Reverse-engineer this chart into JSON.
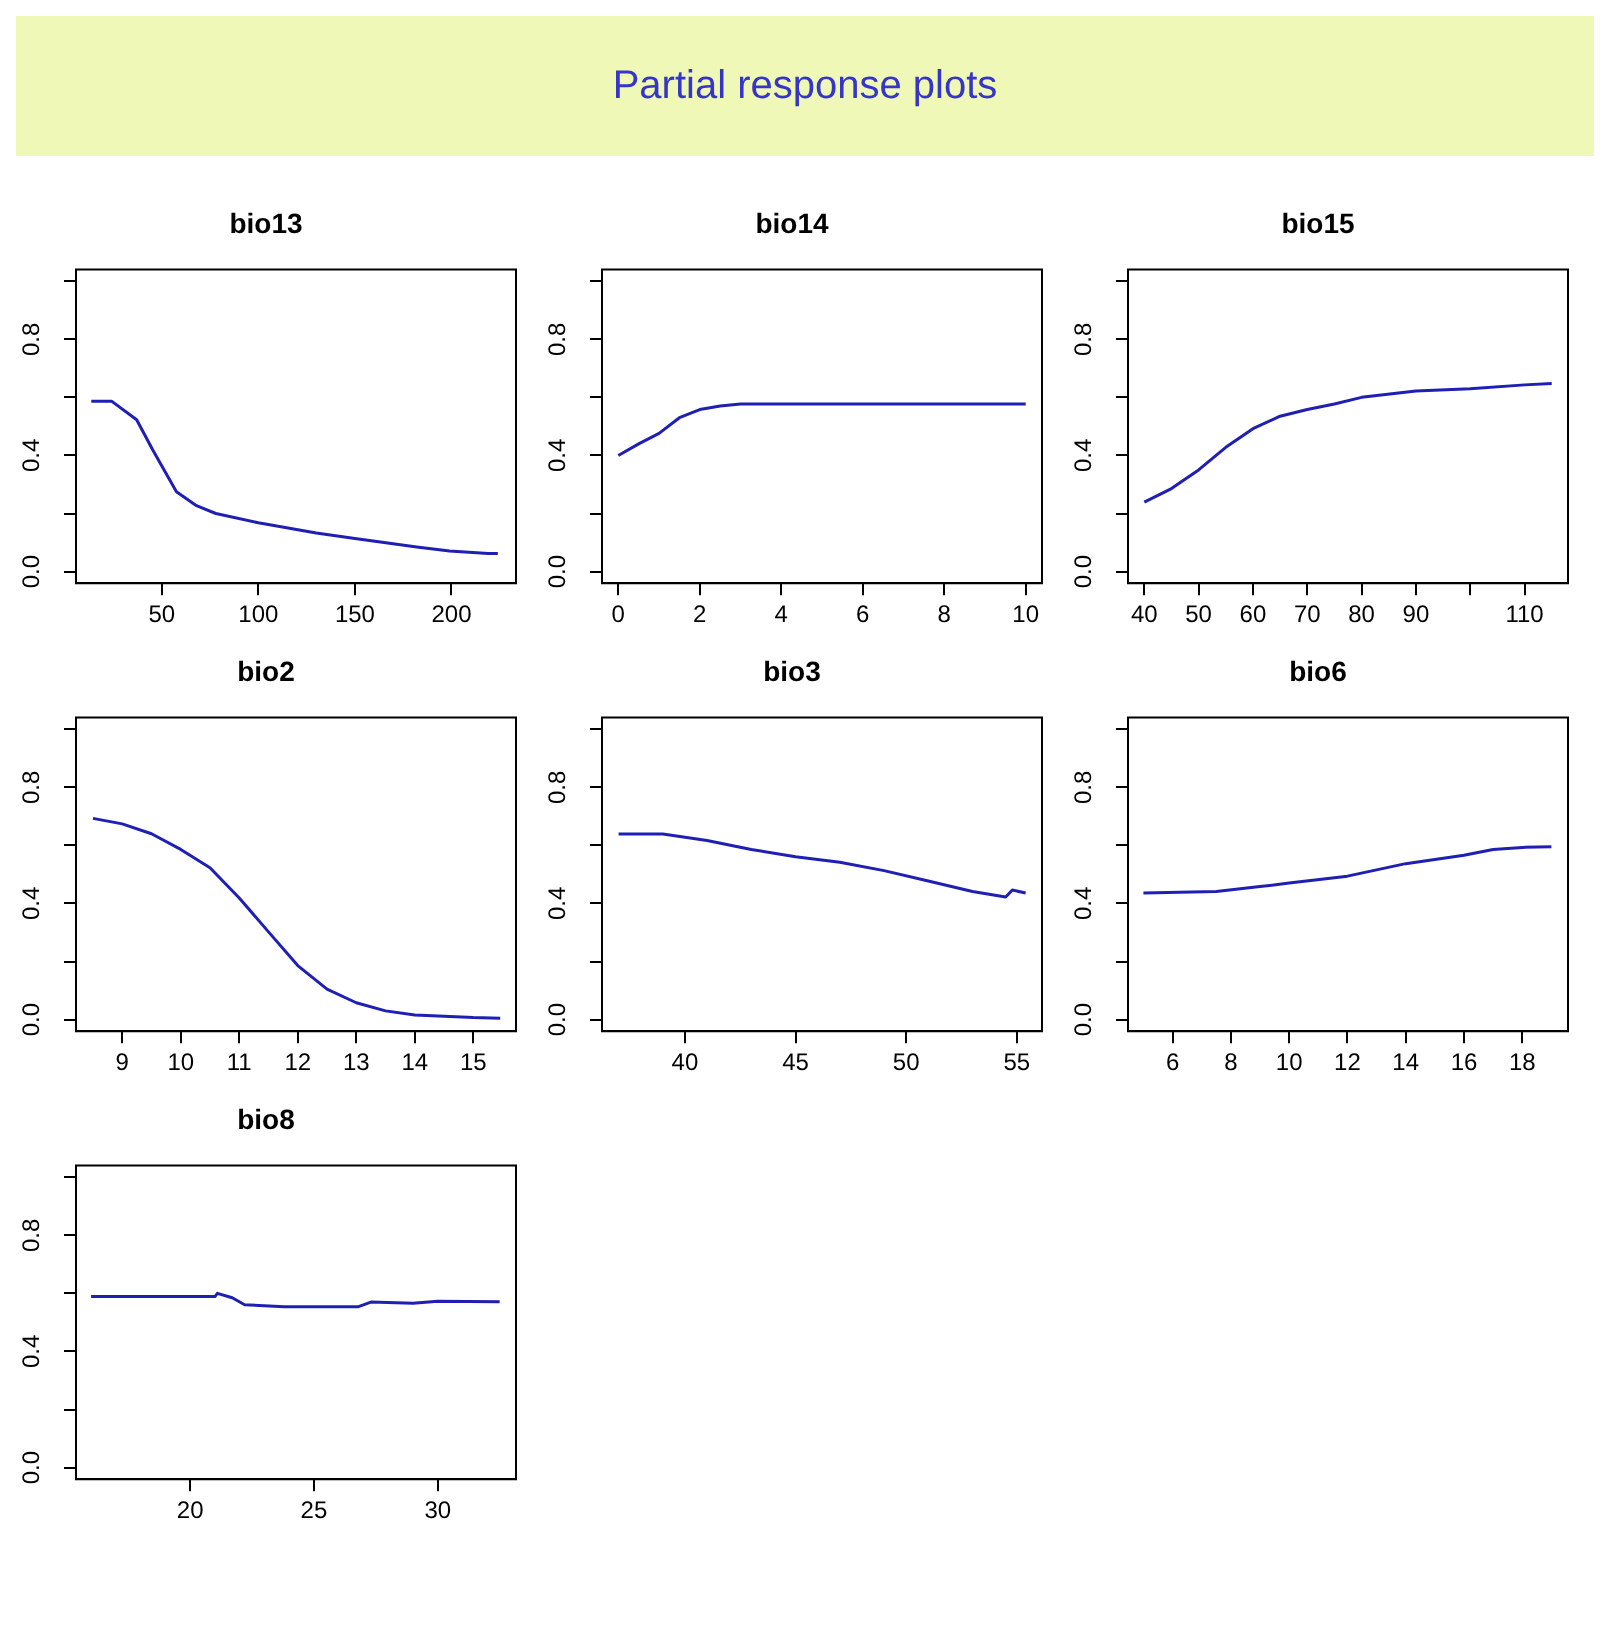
{
  "chart_data": [
    {
      "type": "other",
      "title": "Partial response plots"
    },
    {
      "type": "line",
      "title": "bio13",
      "x": [
        13.5,
        24,
        37,
        45.5,
        57.6,
        68,
        78,
        100,
        130,
        150,
        182,
        199,
        219,
        224
      ],
      "values": [
        0.587,
        0.587,
        0.523,
        0.417,
        0.275,
        0.227,
        0.2,
        0.168,
        0.133,
        0.114,
        0.085,
        0.071,
        0.062,
        0.062
      ],
      "color": "#1f1fb4",
      "xlim": [
        5.6,
        233.4
      ],
      "xticks": [
        50,
        100,
        150,
        200
      ],
      "ylim": [
        -0.04,
        1.04
      ],
      "yticks": [
        {
          "value": 0,
          "label": "0.0"
        },
        {
          "value": 0.2,
          "label": null
        },
        {
          "value": 0.4,
          "label": "0.4"
        },
        {
          "value": 0.6,
          "label": null
        },
        {
          "value": 0.8,
          "label": "0.8"
        },
        {
          "value": 1,
          "label": null
        }
      ],
      "grid": false
    },
    {
      "type": "line",
      "title": "bio14",
      "x": [
        0,
        0.5,
        1,
        1.5,
        2,
        2.5,
        3,
        10
      ],
      "values": [
        0.4,
        0.44,
        0.476,
        0.53,
        0.558,
        0.57,
        0.577,
        0.577
      ],
      "color": "#1f1fb4",
      "xlim": [
        -0.4,
        10.4
      ],
      "xticks": [
        0,
        2,
        4,
        6,
        8,
        10
      ],
      "ylim": [
        -0.04,
        1.04
      ],
      "yticks": [
        {
          "value": 0,
          "label": "0.0"
        },
        {
          "value": 0.2,
          "label": null
        },
        {
          "value": 0.4,
          "label": "0.4"
        },
        {
          "value": 0.6,
          "label": null
        },
        {
          "value": 0.8,
          "label": "0.8"
        },
        {
          "value": 1,
          "label": null
        }
      ],
      "grid": false
    },
    {
      "type": "line",
      "title": "bio15",
      "x": [
        40,
        45,
        50,
        55,
        60,
        65,
        70,
        75,
        80,
        90,
        100,
        110,
        115
      ],
      "values": [
        0.239,
        0.286,
        0.35,
        0.428,
        0.492,
        0.535,
        0.558,
        0.577,
        0.6,
        0.622,
        0.63,
        0.643,
        0.648
      ],
      "color": "#1f1fb4",
      "xlim": [
        37,
        118
      ],
      "xticks": [
        40,
        50,
        60,
        70,
        80,
        90,
        {
          "value": 100,
          "label": null
        },
        110
      ],
      "ylim": [
        -0.04,
        1.04
      ],
      "yticks": [
        {
          "value": 0,
          "label": "0.0"
        },
        {
          "value": 0.2,
          "label": null
        },
        {
          "value": 0.4,
          "label": "0.4"
        },
        {
          "value": 0.6,
          "label": null
        },
        {
          "value": 0.8,
          "label": "0.8"
        },
        {
          "value": 1,
          "label": null
        }
      ],
      "grid": false
    },
    {
      "type": "line",
      "title": "bio2",
      "x": [
        8.5,
        9,
        9.5,
        10,
        10.5,
        11,
        11.5,
        12,
        12.5,
        13,
        13.5,
        14,
        15,
        15.46
      ],
      "values": [
        0.693,
        0.674,
        0.64,
        0.586,
        0.523,
        0.419,
        0.302,
        0.186,
        0.105,
        0.058,
        0.03,
        0.016,
        0.007,
        0.005
      ],
      "color": "#1f1fb4",
      "xlim": [
        8.21,
        15.73
      ],
      "xticks": [
        9,
        10,
        11,
        12,
        13,
        14,
        15
      ],
      "ylim": [
        -0.04,
        1.04
      ],
      "yticks": [
        {
          "value": 0,
          "label": "0.0"
        },
        {
          "value": 0.2,
          "label": null
        },
        {
          "value": 0.4,
          "label": "0.4"
        },
        {
          "value": 0.6,
          "label": null
        },
        {
          "value": 0.8,
          "label": "0.8"
        },
        {
          "value": 1,
          "label": null
        }
      ],
      "grid": false
    },
    {
      "type": "line",
      "title": "bio3",
      "x": [
        37,
        39,
        41,
        43,
        45,
        47,
        49,
        51,
        53,
        54.5,
        54.8,
        55.4
      ],
      "values": [
        0.639,
        0.639,
        0.617,
        0.586,
        0.561,
        0.542,
        0.513,
        0.477,
        0.441,
        0.422,
        0.446,
        0.436
      ],
      "color": "#1f1fb4",
      "xlim": [
        36.25,
        56.14
      ],
      "xticks": [
        40,
        45,
        50,
        55
      ],
      "ylim": [
        -0.04,
        1.04
      ],
      "yticks": [
        {
          "value": 0,
          "label": "0.0"
        },
        {
          "value": 0.2,
          "label": null
        },
        {
          "value": 0.4,
          "label": "0.4"
        },
        {
          "value": 0.6,
          "label": null
        },
        {
          "value": 0.8,
          "label": "0.8"
        },
        {
          "value": 1,
          "label": null
        }
      ],
      "grid": false
    },
    {
      "type": "line",
      "title": "bio6",
      "x": [
        5,
        7.5,
        9,
        10,
        12,
        14,
        16,
        17,
        18,
        19
      ],
      "values": [
        0.436,
        0.441,
        0.458,
        0.47,
        0.494,
        0.537,
        0.566,
        0.586,
        0.593,
        0.595
      ],
      "color": "#1f1fb4",
      "xlim": [
        4.47,
        19.57
      ],
      "xticks": [
        6,
        8,
        10,
        12,
        14,
        16,
        18
      ],
      "ylim": [
        -0.04,
        1.04
      ],
      "yticks": [
        {
          "value": 0,
          "label": "0.0"
        },
        {
          "value": 0.2,
          "label": null
        },
        {
          "value": 0.4,
          "label": "0.4"
        },
        {
          "value": 0.6,
          "label": null
        },
        {
          "value": 0.8,
          "label": "0.8"
        },
        {
          "value": 1,
          "label": null
        }
      ],
      "grid": false
    },
    {
      "type": "line",
      "title": "bio8",
      "x": [
        16,
        21,
        21.1,
        21.7,
        22.2,
        23.8,
        26.8,
        27.3,
        29,
        30,
        32.5
      ],
      "values": [
        0.589,
        0.589,
        0.6,
        0.585,
        0.561,
        0.554,
        0.554,
        0.57,
        0.566,
        0.573,
        0.571
      ],
      "color": "#1f1fb4",
      "xlim": [
        15.39,
        33.16
      ],
      "xticks": [
        20,
        25,
        30
      ],
      "ylim": [
        -0.04,
        1.04
      ],
      "yticks": [
        {
          "value": 0,
          "label": "0.0"
        },
        {
          "value": 0.2,
          "label": null
        },
        {
          "value": 0.4,
          "label": "0.4"
        },
        {
          "value": 0.6,
          "label": null
        },
        {
          "value": 0.8,
          "label": "0.8"
        },
        {
          "value": 1,
          "label": null
        }
      ],
      "grid": false
    }
  ]
}
